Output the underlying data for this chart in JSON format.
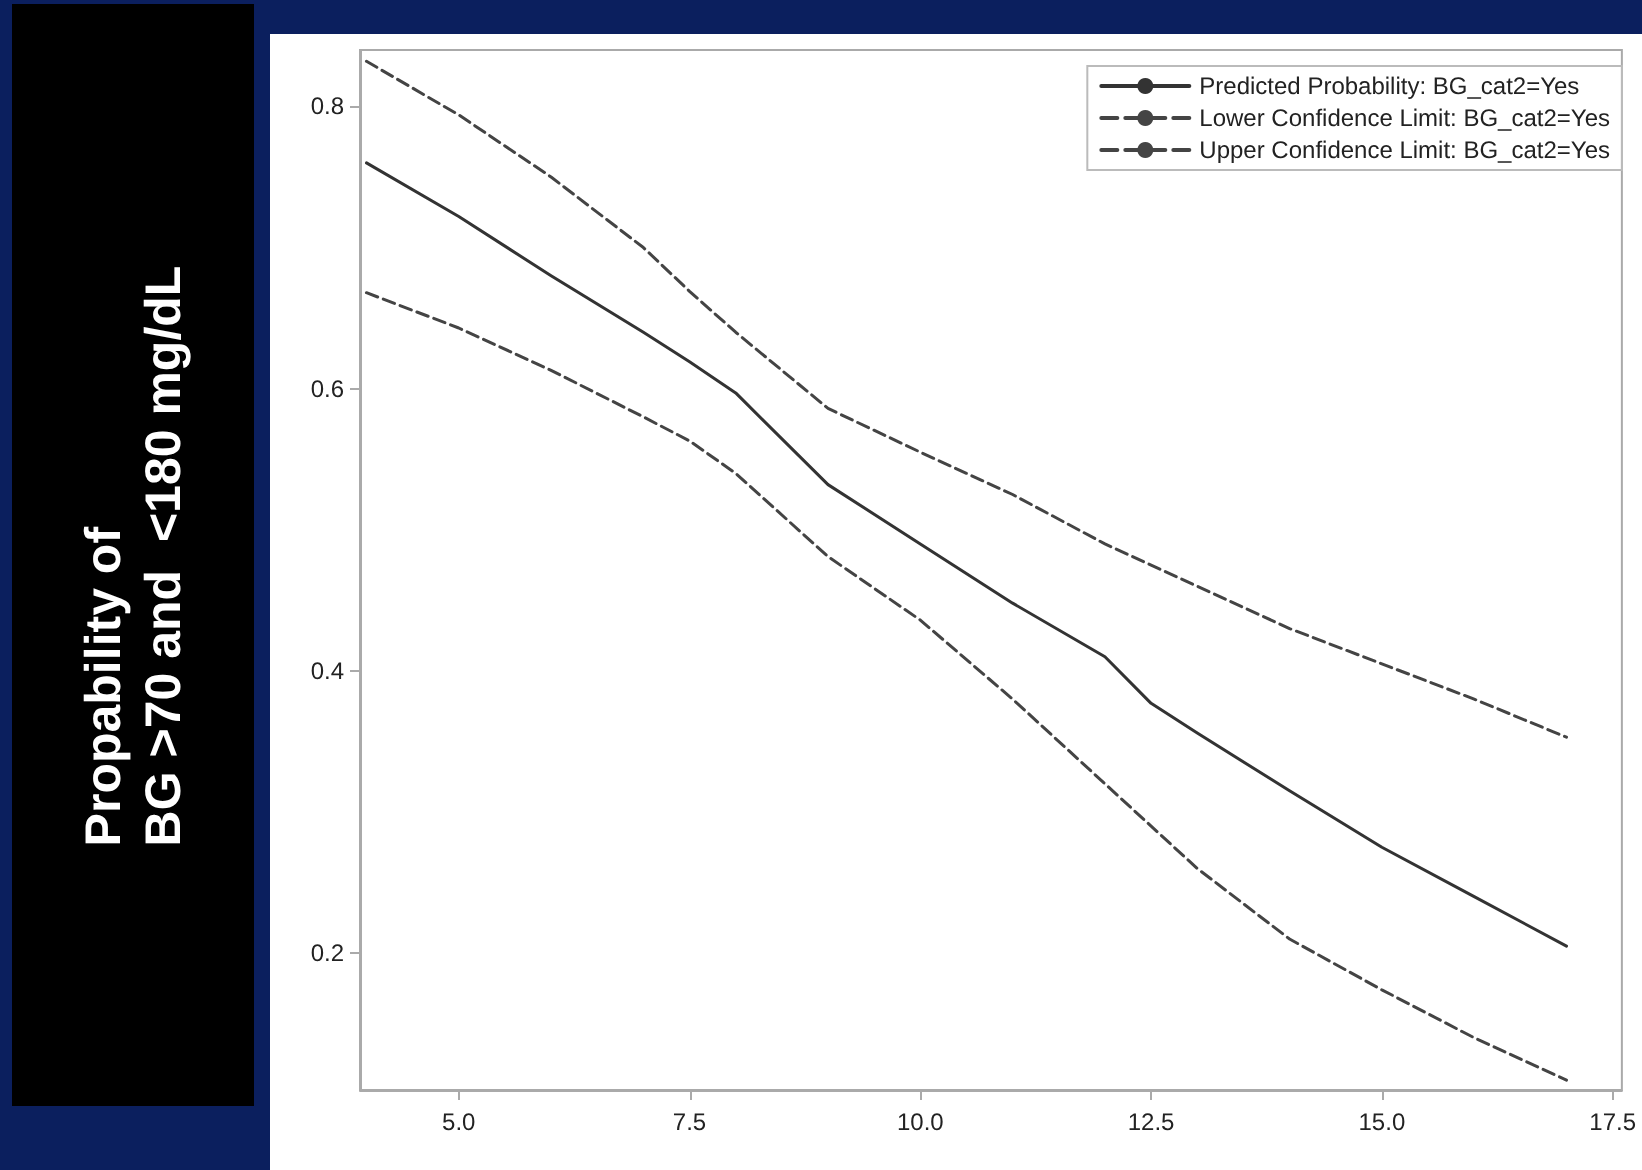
{
  "chart_data": {
    "type": "line",
    "ylabel": "Propability of\nBG >70 and  <180 mg/dL",
    "x": [
      4,
      5,
      6,
      7,
      7.5,
      8,
      9,
      10,
      11,
      12,
      12.5,
      13,
      14,
      15,
      16,
      17
    ],
    "series": [
      {
        "name": "Predicted Probability: BG_cat2=Yes",
        "color": "#333333",
        "line_style": "solid",
        "values": [
          0.76,
          0.722,
          0.68,
          0.64,
          0.619,
          0.597,
          0.532,
          0.49,
          0.448,
          0.41,
          0.377,
          0.356,
          0.315,
          0.275,
          0.24,
          0.205
        ]
      },
      {
        "name": "Lower Confidence Limit: BG_cat2=Yes",
        "color": "#444444",
        "line_style": "dashed",
        "values": [
          0.668,
          0.643,
          0.613,
          0.58,
          0.563,
          0.54,
          0.481,
          0.436,
          0.38,
          0.32,
          0.29,
          0.26,
          0.21,
          0.174,
          0.14,
          0.11
        ]
      },
      {
        "name": "Upper Confidence Limit: BG_cat2=Yes",
        "color": "#444444",
        "line_style": "dashed",
        "values": [
          0.832,
          0.794,
          0.75,
          0.7,
          0.669,
          0.64,
          0.586,
          0.555,
          0.525,
          0.49,
          0.475,
          0.46,
          0.43,
          0.405,
          0.38,
          0.353
        ]
      }
    ],
    "xlim": [
      3.93,
      17.6
    ],
    "xticks": [
      {
        "value": 5,
        "label": "5.0"
      },
      7.5,
      {
        "value": 10,
        "label": "10.0"
      },
      12.5,
      {
        "value": 15,
        "label": "15.0"
      },
      17.5
    ],
    "ylim": [
      0.103,
      0.84
    ],
    "yticks": [
      0.2,
      0.4,
      0.6,
      0.8
    ],
    "grid": false,
    "legend": "top right",
    "marker": "none"
  }
}
